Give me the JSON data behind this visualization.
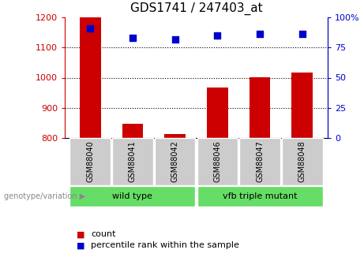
{
  "title": "GDS1741 / 247403_at",
  "samples": [
    "GSM88040",
    "GSM88041",
    "GSM88042",
    "GSM88046",
    "GSM88047",
    "GSM88048"
  ],
  "counts": [
    1200,
    848,
    812,
    967,
    1002,
    1018
  ],
  "percentile_ranks": [
    91,
    83,
    82,
    85,
    86,
    86
  ],
  "ylim_left": [
    800,
    1200
  ],
  "ylim_right": [
    0,
    100
  ],
  "yticks_left": [
    800,
    900,
    1000,
    1100,
    1200
  ],
  "yticks_right": [
    0,
    25,
    50,
    75,
    100
  ],
  "bar_color": "#cc0000",
  "dot_color": "#0000cc",
  "bar_width": 0.5,
  "groups": [
    {
      "label": "wild type",
      "indices": [
        0,
        1,
        2
      ],
      "color": "#66dd66"
    },
    {
      "label": "vfb triple mutant",
      "indices": [
        3,
        4,
        5
      ],
      "color": "#66dd66"
    }
  ],
  "group_label_prefix": "genotype/variation",
  "legend_count_label": "count",
  "legend_percentile_label": "percentile rank within the sample",
  "left_tick_color": "#cc0000",
  "right_tick_color": "#0000cc",
  "grid_color": "black",
  "sample_box_color": "#cccccc",
  "figure_bg": "#ffffff"
}
